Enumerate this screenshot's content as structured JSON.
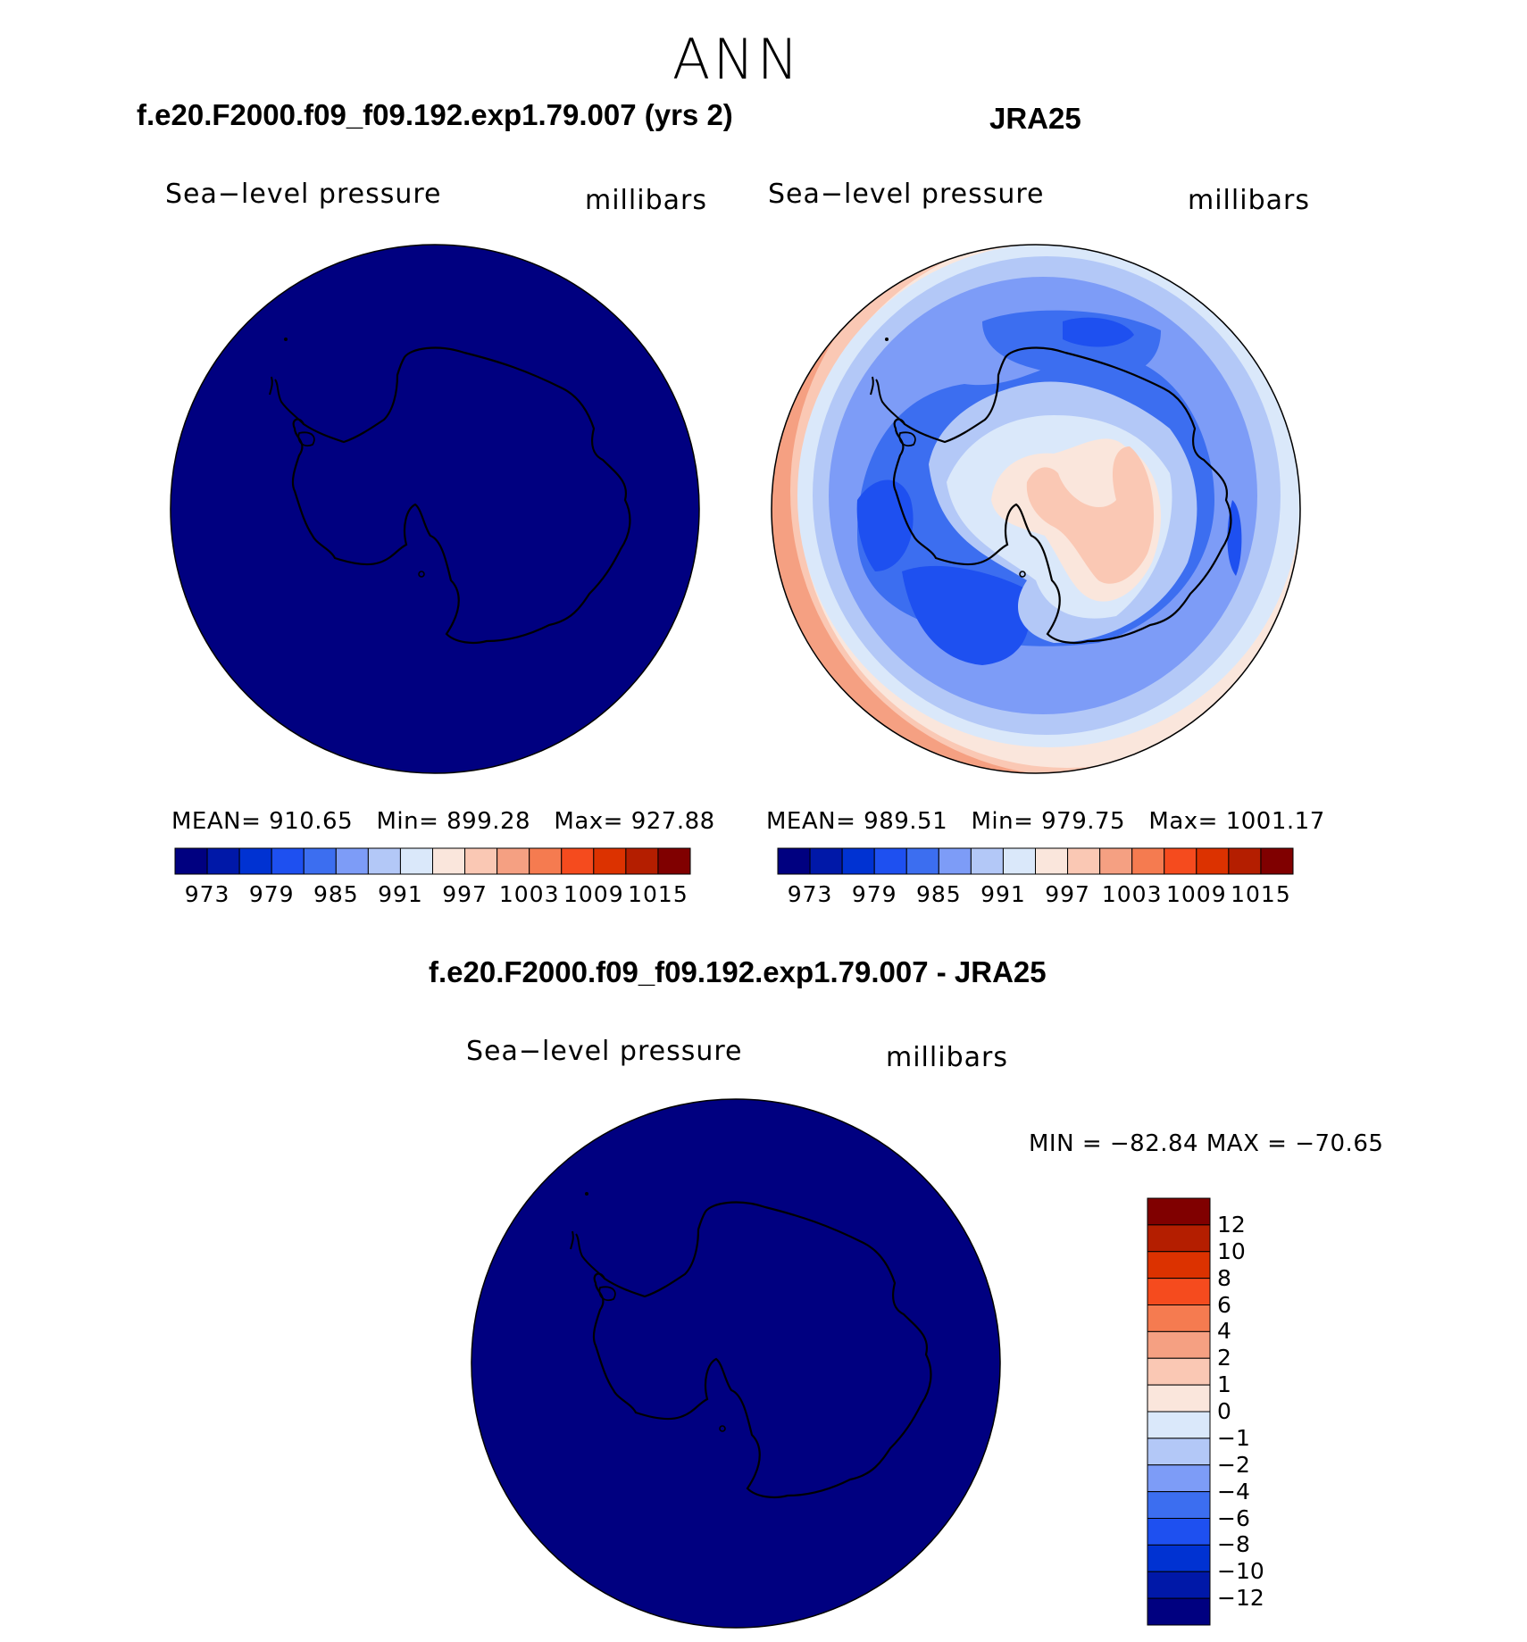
{
  "title": "ANN",
  "colors": {
    "deep_navy": "#000080",
    "ramp": [
      "#000080",
      "#0018a8",
      "#0032d2",
      "#1e50f0",
      "#3c6ef0",
      "#7d9cf7",
      "#b3c8f7",
      "#dae8fa",
      "#fae6dc",
      "#fac8b4",
      "#f5a082",
      "#f57b50",
      "#f54b1e",
      "#dc3200",
      "#b41e00",
      "#800000"
    ]
  },
  "panels": {
    "model": {
      "header": "f.e20.F2000.f09_f09.192.exp1.79.007 (yrs 2)",
      "variable": "Sea−level pressure",
      "units": "millibars",
      "mean_label": "MEAN=",
      "mean": "910.65",
      "min_label": "Min=",
      "min": "899.28",
      "max_label": "Max=",
      "max": "927.88",
      "colorbar_ticks": [
        "973",
        "979",
        "985",
        "991",
        "997",
        "1003",
        "1009",
        "1015"
      ]
    },
    "obs": {
      "header": "JRA25",
      "variable": "Sea−level pressure",
      "units": "millibars",
      "mean_label": "MEAN=",
      "mean": "989.51",
      "min_label": "Min=",
      "min": "979.75",
      "max_label": "Max=",
      "max": "1001.17",
      "colorbar_ticks": [
        "973",
        "979",
        "985",
        "991",
        "997",
        "1003",
        "1009",
        "1015"
      ]
    },
    "diff": {
      "header": "f.e20.F2000.f09_f09.192.exp1.79.007 - JRA25",
      "variable": "Sea−level pressure",
      "units": "millibars",
      "minmax": "MIN = −82.84 MAX = −70.65",
      "colorbar_ticks": [
        "12",
        "10",
        "8",
        "6",
        "4",
        "2",
        "1",
        "0",
        "−1",
        "−2",
        "−4",
        "−6",
        "−8",
        "−10",
        "−12"
      ]
    }
  }
}
